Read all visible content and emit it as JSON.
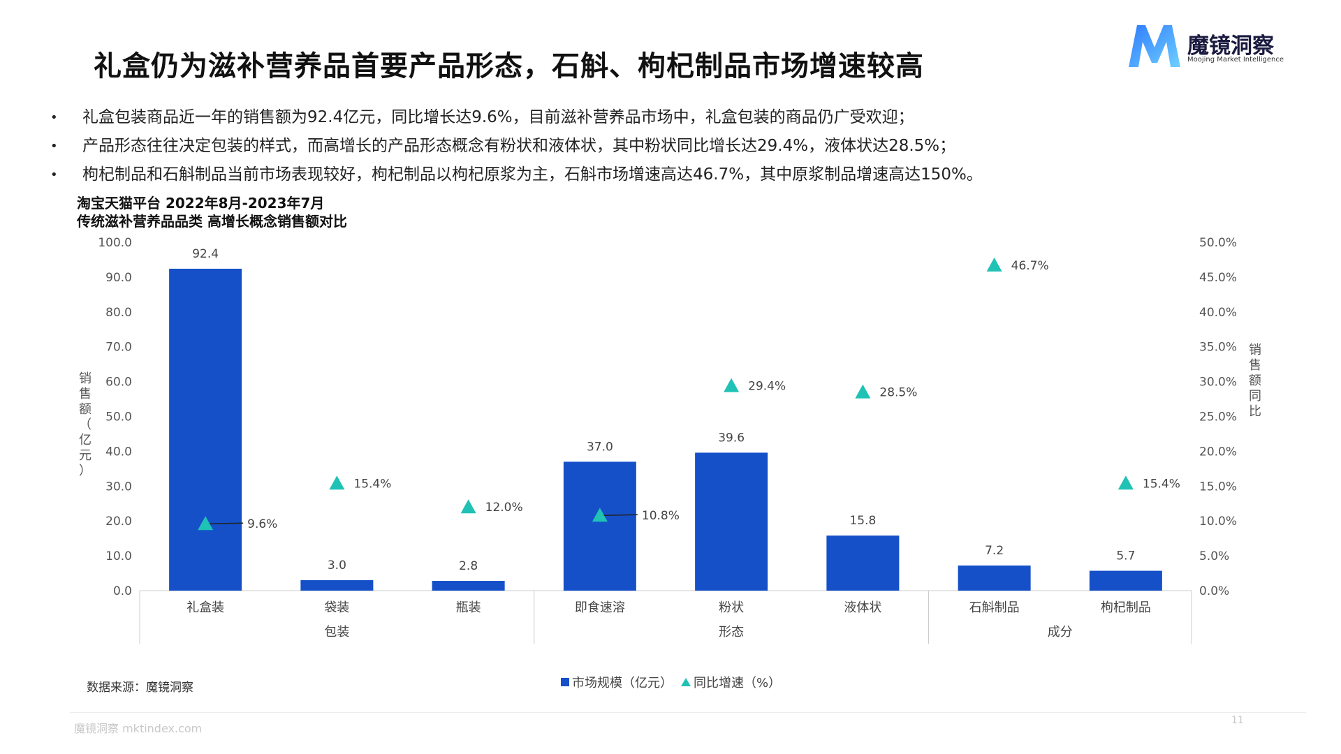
{
  "title": "礼盒仍为滋补营养品首要产品形态，石斛、枸杞制品市场增速较高",
  "logo": {
    "name": "魔镜洞察",
    "subtitle": "Moojing Market Intelligence"
  },
  "bullets": [
    "礼盒包装商品近一年的销售额为92.4亿元，同比增长达9.6%，目前滋补营养品市场中，礼盒包装的商品仍广受欢迎；",
    "产品形态往往决定包装的样式，而高增长的产品形态概念有粉状和液体状，其中粉状同比增长达29.4%，液体状达28.5%；",
    "枸杞制品和石斛制品当前市场表现较好，枸杞制品以枸杞原浆为主，石斛市场增速高达46.7%，其中原浆制品增速高达150%。"
  ],
  "chart_title": [
    "淘宝天猫平台 2022年8月-2023年7月",
    "传统滋补营养品品类 高增长概念销售额对比"
  ],
  "chart_data": {
    "type": "bar",
    "categories": [
      "礼盒装",
      "袋装",
      "瓶装",
      "即食速溶",
      "粉状",
      "液体状",
      "石斛制品",
      "枸杞制品"
    ],
    "groups": [
      {
        "label": "包装",
        "categories": [
          "礼盒装",
          "袋装",
          "瓶装"
        ]
      },
      {
        "label": "形态",
        "categories": [
          "即食速溶",
          "粉状",
          "液体状"
        ]
      },
      {
        "label": "成分",
        "categories": [
          "石斛制品",
          "枸杞制品"
        ]
      }
    ],
    "series": [
      {
        "name": "市场规模（亿元）",
        "type": "bar",
        "axis": "left",
        "values": [
          92.4,
          3.0,
          2.8,
          37.0,
          39.6,
          15.8,
          7.2,
          5.7
        ],
        "labels": [
          "92.4",
          "3.0",
          "2.8",
          "37.0",
          "39.6",
          "15.8",
          "7.2",
          "5.7"
        ]
      },
      {
        "name": "同比增速（%）",
        "type": "scatter",
        "marker": "triangle",
        "axis": "right",
        "values": [
          9.6,
          15.4,
          12.0,
          10.8,
          29.4,
          28.5,
          46.7,
          15.4
        ],
        "labels": [
          "9.6%",
          "15.4%",
          "12.0%",
          "10.8%",
          "29.4%",
          "28.5%",
          "46.7%",
          "15.4%"
        ]
      }
    ],
    "ylabel": "销售额（亿元）",
    "y2label": "销售额同比",
    "ylim": [
      0,
      100
    ],
    "y2lim": [
      0,
      50
    ],
    "yticks": [
      "0.0",
      "10.0",
      "20.0",
      "30.0",
      "40.0",
      "50.0",
      "60.0",
      "70.0",
      "80.0",
      "90.0",
      "100.0"
    ],
    "y2ticks": [
      "0.0%",
      "5.0%",
      "10.0%",
      "15.0%",
      "20.0%",
      "25.0%",
      "30.0%",
      "35.0%",
      "40.0%",
      "45.0%",
      "50.0%"
    ],
    "legend_position": "bottom",
    "grid": false,
    "colors": {
      "bar": "#1550c9",
      "marker": "#1fc2b5"
    }
  },
  "legend": {
    "bar": "市场规模（亿元）",
    "marker": "同比增速（%）"
  },
  "source": "数据来源：魔镜洞察",
  "footer": "魔镜洞察 mktindex.com",
  "page_number": "11"
}
